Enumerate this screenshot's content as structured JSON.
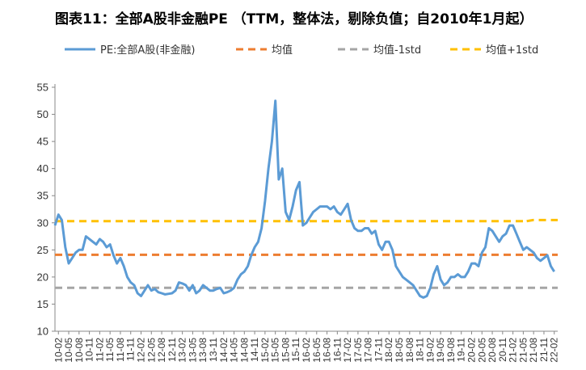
{
  "chart_data": {
    "type": "line",
    "title": "图表11：全部A股非金融PE （TTM，整体法，剔除负值；自2010年1月起）",
    "ylim": [
      10,
      55
    ],
    "yticks": [
      10,
      15,
      20,
      25,
      30,
      35,
      40,
      45,
      50,
      55
    ],
    "grid": false,
    "legend_position": "top",
    "x_tick_labels": [
      "10-02",
      "10-05",
      "10-08",
      "10-11",
      "11-02",
      "11-05",
      "11-08",
      "11-11",
      "12-02",
      "12-05",
      "12-08",
      "12-11",
      "13-02",
      "13-05",
      "13-08",
      "13-11",
      "14-02",
      "14-05",
      "14-08",
      "14-11",
      "15-02",
      "15-05",
      "15-08",
      "15-11",
      "16-02",
      "16-05",
      "16-08",
      "16-11",
      "17-02",
      "17-05",
      "17-08",
      "17-11",
      "18-02",
      "18-05",
      "18-08",
      "18-11",
      "19-02",
      "19-05",
      "19-08",
      "19-11",
      "20-02",
      "20-05",
      "20-08",
      "20-11",
      "21-02",
      "21-05",
      "21-08",
      "21-11",
      "22-02"
    ],
    "series": [
      {
        "name": "PE:全部A股(非金融)",
        "color": "#5b9bd5",
        "style": "solid",
        "x": [
          "10-01",
          "10-02",
          "10-03",
          "10-04",
          "10-05",
          "10-06",
          "10-07",
          "10-08",
          "10-09",
          "10-10",
          "10-11",
          "10-12",
          "11-01",
          "11-02",
          "11-03",
          "11-04",
          "11-05",
          "11-06",
          "11-07",
          "11-08",
          "11-09",
          "11-10",
          "11-11",
          "11-12",
          "12-01",
          "12-02",
          "12-03",
          "12-04",
          "12-05",
          "12-06",
          "12-07",
          "12-08",
          "12-09",
          "12-10",
          "12-11",
          "12-12",
          "13-01",
          "13-02",
          "13-03",
          "13-04",
          "13-05",
          "13-06",
          "13-07",
          "13-08",
          "13-09",
          "13-10",
          "13-11",
          "13-12",
          "14-01",
          "14-02",
          "14-03",
          "14-04",
          "14-05",
          "14-06",
          "14-07",
          "14-08",
          "14-09",
          "14-10",
          "14-11",
          "14-12",
          "15-01",
          "15-02",
          "15-03",
          "15-04",
          "15-05",
          "15-06",
          "15-07",
          "15-08",
          "15-09",
          "15-10",
          "15-11",
          "15-12",
          "16-01",
          "16-02",
          "16-03",
          "16-04",
          "16-05",
          "16-06",
          "16-07",
          "16-08",
          "16-09",
          "16-10",
          "16-11",
          "16-12",
          "17-01",
          "17-02",
          "17-03",
          "17-04",
          "17-05",
          "17-06",
          "17-07",
          "17-08",
          "17-09",
          "17-10",
          "17-11",
          "17-12",
          "18-01",
          "18-02",
          "18-03",
          "18-04",
          "18-05",
          "18-06",
          "18-07",
          "18-08",
          "18-09",
          "18-10",
          "18-11",
          "18-12",
          "19-01",
          "19-02",
          "19-03",
          "19-04",
          "19-05",
          "19-06",
          "19-07",
          "19-08",
          "19-09",
          "19-10",
          "19-11",
          "19-12",
          "20-01",
          "20-02",
          "20-03",
          "20-04",
          "20-05",
          "20-06",
          "20-07",
          "20-08",
          "20-09",
          "20-10",
          "20-11",
          "20-12",
          "21-01",
          "21-02",
          "21-03",
          "21-04",
          "21-05",
          "21-06",
          "21-07",
          "21-08",
          "21-09",
          "21-10",
          "21-11",
          "21-12",
          "22-01",
          "22-02"
        ],
        "y": [
          29.5,
          31.5,
          30.5,
          25.5,
          22.5,
          23.5,
          24.5,
          25,
          25,
          27.5,
          27,
          26.5,
          26,
          27,
          26.5,
          25.5,
          26,
          24,
          22.5,
          23.5,
          22,
          20,
          19,
          18.5,
          17,
          16.5,
          17.5,
          18.5,
          17.5,
          17.8,
          17.2,
          17,
          16.8,
          16.9,
          17,
          17.5,
          19,
          18.8,
          18.5,
          17.5,
          18.5,
          17,
          17.5,
          18.5,
          18,
          17.5,
          17.5,
          17.8,
          18,
          17,
          17.2,
          17.5,
          18,
          19.5,
          20.5,
          21,
          22,
          24,
          25.5,
          26.5,
          29,
          34,
          40,
          45,
          52.5,
          38,
          40,
          32,
          30.5,
          33,
          36,
          37.5,
          29.5,
          30,
          31,
          32,
          32.5,
          33,
          33,
          33,
          32.5,
          33,
          32,
          31.5,
          32.5,
          33.5,
          30.5,
          29,
          28.5,
          28.5,
          29,
          29,
          28,
          28.5,
          26,
          25,
          26.5,
          26.5,
          25,
          22,
          21,
          20,
          19.5,
          19,
          18.5,
          17.5,
          16.5,
          16.2,
          16.5,
          18,
          20.5,
          22,
          19.5,
          18.5,
          19,
          20,
          20,
          20.5,
          20,
          20,
          21,
          22.5,
          22.5,
          22,
          24.5,
          25.5,
          29,
          28.5,
          27.5,
          26.5,
          27.5,
          28,
          29.5,
          29.5,
          28,
          26.5,
          25,
          25.5,
          25,
          24.5,
          23.5,
          23,
          23.5,
          24,
          22,
          21
        ]
      },
      {
        "name": "均值",
        "color": "#ed7d31",
        "style": "dashed",
        "value": 24.1
      },
      {
        "name": "均值-1std",
        "color": "#a5a5a5",
        "style": "dashed",
        "value": 18.0
      },
      {
        "name": "均值+1std",
        "color": "#ffc000",
        "style": "dashed",
        "value": 30.3,
        "x_from": "21-06",
        "value_to": 30.5
      }
    ]
  }
}
